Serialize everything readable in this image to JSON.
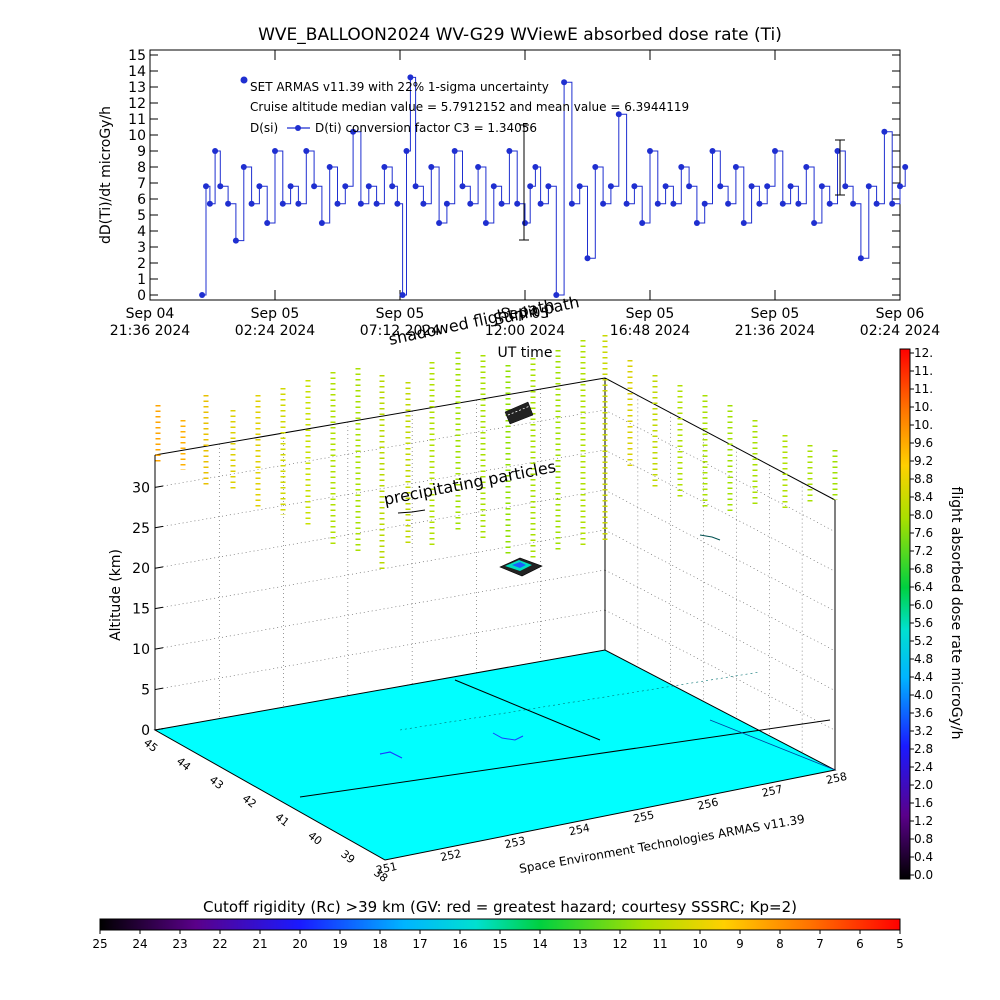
{
  "chart_data": [
    {
      "type": "line",
      "title": "WVE_BALLOON2024 WV-G29 WViewE absorbed dose rate (Ti)",
      "ylabel": "dD(Ti)/dt microGy/h",
      "xlabel": "UT time",
      "ylim": [
        0,
        15
      ],
      "yticks": [
        "0",
        "1",
        "2",
        "3",
        "4",
        "5",
        "6",
        "7",
        "8",
        "9",
        "10",
        "11",
        "12",
        "13",
        "14",
        "15"
      ],
      "xticks": [
        {
          "line1": "Sep 04",
          "line2": "21:36 2024"
        },
        {
          "line1": "Sep 05",
          "line2": "02:24 2024"
        },
        {
          "line1": "Sep 05",
          "line2": "07:12 2024"
        },
        {
          "line1": "Sep 05",
          "line2": "12:00 2024"
        },
        {
          "line1": "Sep 05",
          "line2": "16:48 2024"
        },
        {
          "line1": "Sep 05",
          "line2": "21:36 2024"
        },
        {
          "line1": "Sep 06",
          "line2": "02:24 2024"
        }
      ],
      "annotations": [
        "SET ARMAS v11.39 with 22% 1-sigma uncertainty",
        "Cruise altitude median value = 5.7912152 and mean value = 6.3944119",
        "D(si)",
        "D(ti) conversion factor C3 = 1.34056"
      ],
      "overlay_labels": [
        "shadowed flight path",
        "Sunlit path"
      ],
      "series": [
        {
          "color": "#1f2fd0",
          "x_hours_from_first_tick": [
            2.0,
            2.15,
            2.3,
            2.5,
            2.7,
            3.0,
            3.3,
            3.6,
            3.9,
            4.2,
            4.5,
            4.8,
            5.1,
            5.4,
            5.7,
            6.0,
            6.3,
            6.6,
            6.9,
            7.2,
            7.5,
            7.8,
            8.1,
            8.4,
            8.7,
            9.0,
            9.3,
            9.5,
            9.7,
            9.85,
            10.0,
            10.2,
            10.5,
            10.8,
            11.1,
            11.4,
            11.7,
            12.0,
            12.3,
            12.6,
            12.9,
            13.2,
            13.5,
            13.8,
            14.1,
            14.4,
            14.6,
            14.8,
            15.0,
            15.3,
            15.6,
            15.9,
            16.2,
            16.5,
            16.8,
            17.1,
            17.4,
            17.7,
            18.0,
            18.3,
            18.6,
            18.9,
            19.2,
            19.5,
            19.8,
            20.1,
            20.4,
            20.7,
            21.0,
            21.3,
            21.6,
            21.9,
            22.2,
            22.5,
            22.8,
            23.1,
            23.4,
            23.7,
            24.0,
            24.3,
            24.6,
            24.9,
            25.2,
            25.5,
            25.8,
            26.1,
            26.4,
            26.7,
            27.0,
            27.3,
            27.6,
            27.9,
            28.2,
            28.5,
            28.8,
            29.0
          ],
          "values": [
            0,
            6.8,
            5.7,
            9.0,
            6.8,
            5.7,
            3.4,
            8.0,
            5.7,
            6.8,
            4.5,
            9.0,
            5.7,
            6.8,
            5.7,
            9.0,
            6.8,
            4.5,
            8.0,
            5.7,
            6.8,
            10.2,
            5.7,
            6.8,
            5.7,
            8.0,
            6.8,
            5.7,
            0,
            9.0,
            13.6,
            6.8,
            5.7,
            8.0,
            4.5,
            5.7,
            9.0,
            6.8,
            5.7,
            8.0,
            4.5,
            6.8,
            5.7,
            9.0,
            5.7,
            4.5,
            6.8,
            8.0,
            5.7,
            6.8,
            0,
            13.3,
            5.7,
            6.8,
            2.3,
            8.0,
            5.7,
            6.8,
            11.3,
            5.7,
            6.8,
            4.5,
            9.0,
            5.7,
            6.8,
            5.7,
            8.0,
            6.8,
            4.5,
            5.7,
            9.0,
            6.8,
            5.7,
            8.0,
            4.5,
            6.8,
            5.7,
            6.8,
            9.0,
            5.7,
            6.8,
            5.7,
            8.0,
            4.5,
            6.8,
            5.7,
            9.0,
            6.8,
            5.7,
            2.3,
            6.8,
            5.7,
            10.2,
            5.7,
            6.8,
            8.0
          ]
        }
      ]
    },
    {
      "type": "surface3d",
      "zlabel": "Altitude (km)",
      "zticks": [
        "0",
        "5",
        "10",
        "15",
        "20",
        "25",
        "30"
      ],
      "lat_ticks": [
        "45",
        "44",
        "43",
        "42",
        "41",
        "40",
        "39",
        "38"
      ],
      "lon_ticks": [
        "251",
        "252",
        "253",
        "254",
        "255",
        "256",
        "257",
        "258"
      ],
      "annotations": [
        "precipitating particles",
        "Space Environment Technologies ARMAS v11.39"
      ],
      "surface_color": "#00ffff"
    },
    {
      "type": "colorbar",
      "label": "flight absorbed dose rate microGy/h",
      "ticks": [
        "0.0",
        "0.4",
        "0.8",
        "1.2",
        "1.6",
        "2.0",
        "2.4",
        "2.8",
        "3.2",
        "3.6",
        "4.0",
        "4.4",
        "4.8",
        "5.2",
        "5.6",
        "6.0",
        "6.4",
        "6.8",
        "7.2",
        "7.6",
        "8.0",
        "8.4",
        "8.8",
        "9.2",
        "9.6",
        "10.",
        "10.",
        "11.",
        "11.",
        "12."
      ]
    },
    {
      "type": "colorbar",
      "label": "Cutoff rigidity (Rc) >39 km (GV: red = greatest hazard; courtesy SSSRC; Kp=2)",
      "ticks": [
        "25",
        "24",
        "23",
        "22",
        "21",
        "20",
        "19",
        "18",
        "17",
        "16",
        "15",
        "14",
        "13",
        "12",
        "11",
        "10",
        "9",
        "8",
        "7",
        "6",
        "5"
      ]
    }
  ]
}
